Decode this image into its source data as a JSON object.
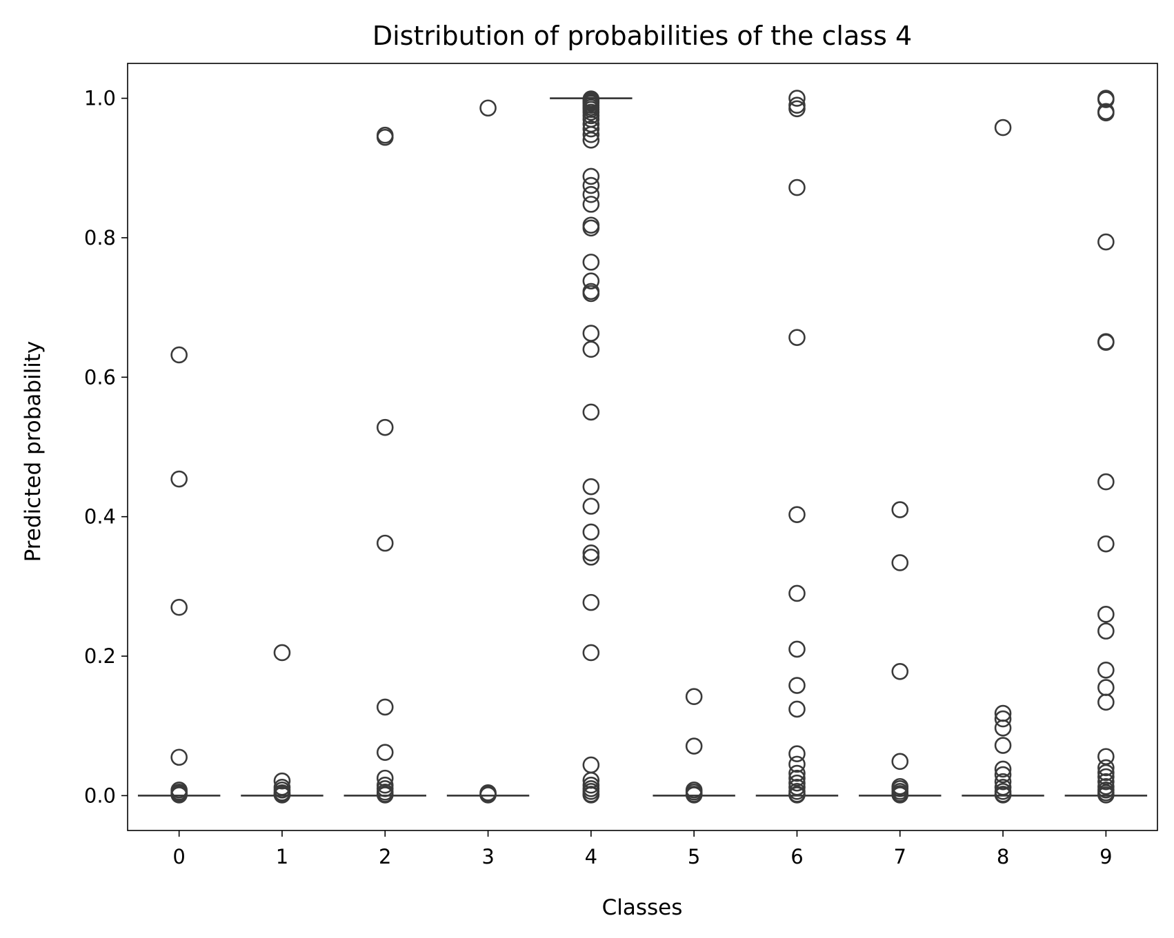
{
  "chart_data": {
    "type": "box",
    "title": "Distribution of probabilities of the class 4",
    "xlabel": "Classes",
    "ylabel": "Predicted probability",
    "categories": [
      "0",
      "1",
      "2",
      "3",
      "4",
      "5",
      "6",
      "7",
      "8",
      "9"
    ],
    "ylim": [
      -0.05,
      1.05
    ],
    "yticks": [
      0.0,
      0.2,
      0.4,
      0.6,
      0.8,
      1.0
    ],
    "ytick_labels": [
      "0.0",
      "0.2",
      "0.4",
      "0.6",
      "0.8",
      "1.0"
    ],
    "grid": false,
    "line_color": "#3a3a3a",
    "boxes": [
      {
        "category": "0",
        "median": 0.0,
        "q1": 0.0,
        "q3": 0.0,
        "outliers": [
          0.632,
          0.454,
          0.27,
          0.055,
          0.008,
          0.005,
          0.003,
          0.001
        ]
      },
      {
        "category": "1",
        "median": 0.0,
        "q1": 0.0,
        "q3": 0.0,
        "outliers": [
          0.205,
          0.021,
          0.012,
          0.008,
          0.004,
          0.002,
          0.001
        ]
      },
      {
        "category": "2",
        "median": 0.0,
        "q1": 0.0,
        "q3": 0.0,
        "outliers": [
          0.947,
          0.944,
          0.528,
          0.362,
          0.127,
          0.062,
          0.025,
          0.015,
          0.01,
          0.005,
          0.002,
          0.001
        ]
      },
      {
        "category": "3",
        "median": 0.0,
        "q1": 0.0,
        "q3": 0.0,
        "outliers": [
          0.986,
          0.004,
          0.002,
          0.001
        ]
      },
      {
        "category": "4",
        "median": 1.0,
        "q1": 1.0,
        "q3": 1.0,
        "outliers": [
          0.999,
          0.997,
          0.995,
          0.993,
          0.99,
          0.987,
          0.984,
          0.98,
          0.975,
          0.97,
          0.963,
          0.956,
          0.948,
          0.94,
          0.888,
          0.875,
          0.862,
          0.848,
          0.818,
          0.814,
          0.765,
          0.738,
          0.723,
          0.72,
          0.663,
          0.64,
          0.55,
          0.443,
          0.415,
          0.378,
          0.348,
          0.342,
          0.277,
          0.205,
          0.044,
          0.022,
          0.015,
          0.01,
          0.006,
          0.002,
          0.001
        ]
      },
      {
        "category": "5",
        "median": 0.0,
        "q1": 0.0,
        "q3": 0.0,
        "outliers": [
          0.142,
          0.071,
          0.008,
          0.005,
          0.002,
          0.001
        ]
      },
      {
        "category": "6",
        "median": 0.0,
        "q1": 0.0,
        "q3": 0.0,
        "outliers": [
          1.0,
          0.99,
          0.985,
          0.872,
          0.657,
          0.403,
          0.29,
          0.21,
          0.158,
          0.124,
          0.06,
          0.045,
          0.032,
          0.025,
          0.018,
          0.012,
          0.006,
          0.002,
          0.001
        ]
      },
      {
        "category": "7",
        "median": 0.0,
        "q1": 0.0,
        "q3": 0.0,
        "outliers": [
          0.41,
          0.334,
          0.178,
          0.049,
          0.013,
          0.01,
          0.006,
          0.003,
          0.001
        ]
      },
      {
        "category": "8",
        "median": 0.0,
        "q1": 0.0,
        "q3": 0.0,
        "outliers": [
          0.958,
          0.118,
          0.11,
          0.097,
          0.072,
          0.038,
          0.03,
          0.02,
          0.012,
          0.006,
          0.002,
          0.001
        ]
      },
      {
        "category": "9",
        "median": 0.0,
        "q1": 0.0,
        "q3": 0.0,
        "outliers": [
          1.0,
          0.998,
          0.981,
          0.979,
          0.794,
          0.651,
          0.65,
          0.45,
          0.361,
          0.26,
          0.236,
          0.18,
          0.155,
          0.134,
          0.056,
          0.04,
          0.033,
          0.027,
          0.02,
          0.013,
          0.008,
          0.004,
          0.001
        ]
      }
    ]
  }
}
